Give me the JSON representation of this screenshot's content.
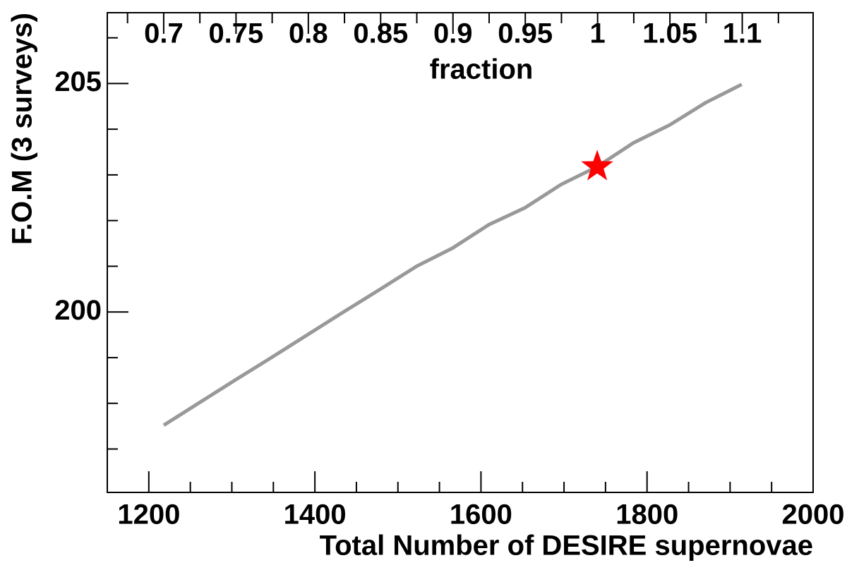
{
  "chart_data": {
    "type": "line",
    "xlabel": "Total Number of DESIRE supernovae",
    "ylabel": "F.O.M (3 surveys)",
    "x2label": "fraction",
    "xlim": [
      1150,
      2000
    ],
    "xticks": [
      1200,
      1400,
      1600,
      1800,
      2000
    ],
    "xminorticks": [
      1250,
      1300,
      1350,
      1450,
      1500,
      1550,
      1650,
      1700,
      1750,
      1850,
      1900,
      1950
    ],
    "ylim": [
      196.05,
      206.55
    ],
    "yticks": [
      200,
      205
    ],
    "yminorticks": [
      197,
      198,
      199,
      201,
      202,
      203,
      204,
      206
    ],
    "x2lim": [
      0.661,
      1.149
    ],
    "x2ticks": [
      0.7,
      0.75,
      0.8,
      0.85,
      0.9,
      0.95,
      1,
      1.05,
      1.1
    ],
    "x2minorticks": [
      0.675,
      0.725,
      0.775,
      0.825,
      0.875,
      0.925,
      0.975,
      1.025,
      1.075,
      1.125
    ],
    "series": [
      {
        "color": "#999999",
        "marker": "none",
        "x": [
          1218,
          1261.5,
          1305,
          1348.5,
          1392,
          1435.5,
          1479,
          1522.5,
          1566,
          1609.5,
          1653,
          1696.5,
          1740,
          1783.5,
          1827,
          1870.5,
          1914
        ],
        "values": [
          197.52,
          198.02,
          198.52,
          199.01,
          199.51,
          200.01,
          200.5,
          201.0,
          201.4,
          201.91,
          202.28,
          202.79,
          203.18,
          203.7,
          204.09,
          204.58,
          204.98
        ]
      },
      {
        "color": "#ff0000",
        "marker": "star",
        "x": [
          1740
        ],
        "values": [
          203.18
        ]
      }
    ]
  }
}
